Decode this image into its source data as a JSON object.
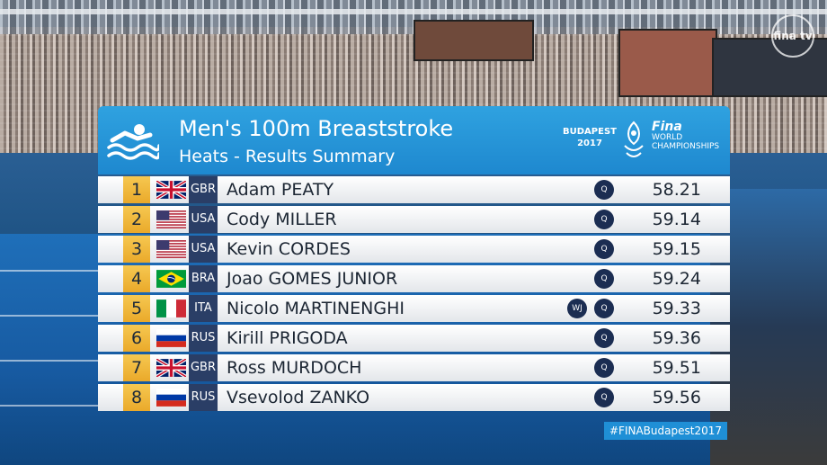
{
  "broadcast": {
    "logo": "fina tv"
  },
  "event": {
    "title": "Men's 100m Breaststroke",
    "subtitle": "Heats - Results Summary",
    "icon": "swimmer-icon"
  },
  "branding": {
    "city": "BUDAPEST",
    "year": "2017",
    "org": "Fina",
    "line1": "WORLD",
    "line2": "CHAMPIONSHIPS",
    "hashtag": "#FINABudapest2017"
  },
  "colors": {
    "header_blue": "#1e88cf",
    "rank_gold": "#eaa92a",
    "noc_navy": "#2a3e66",
    "badge_navy": "#1b2d52"
  },
  "results": [
    {
      "rank": "1",
      "flag": "gbr-flag-icon",
      "noc": "GBR",
      "name": "Adam PEATY",
      "badges": [
        "Q"
      ],
      "time": "58.21"
    },
    {
      "rank": "2",
      "flag": "usa-flag-icon",
      "noc": "USA",
      "name": "Cody MILLER",
      "badges": [
        "Q"
      ],
      "time": "59.14"
    },
    {
      "rank": "3",
      "flag": "usa-flag-icon",
      "noc": "USA",
      "name": "Kevin CORDES",
      "badges": [
        "Q"
      ],
      "time": "59.15"
    },
    {
      "rank": "4",
      "flag": "bra-flag-icon",
      "noc": "BRA",
      "name": "Joao GOMES JUNIOR",
      "badges": [
        "Q"
      ],
      "time": "59.24"
    },
    {
      "rank": "5",
      "flag": "ita-flag-icon",
      "noc": "ITA",
      "name": "Nicolo MARTINENGHI",
      "badges": [
        "WJ",
        "Q"
      ],
      "time": "59.33"
    },
    {
      "rank": "6",
      "flag": "rus-flag-icon",
      "noc": "RUS",
      "name": "Kirill PRIGODA",
      "badges": [
        "Q"
      ],
      "time": "59.36"
    },
    {
      "rank": "7",
      "flag": "gbr-flag-icon",
      "noc": "GBR",
      "name": "Ross MURDOCH",
      "badges": [
        "Q"
      ],
      "time": "59.51"
    },
    {
      "rank": "8",
      "flag": "rus-flag-icon",
      "noc": "RUS",
      "name": "Vsevolod ZANKO",
      "badges": [
        "Q"
      ],
      "time": "59.56"
    }
  ]
}
